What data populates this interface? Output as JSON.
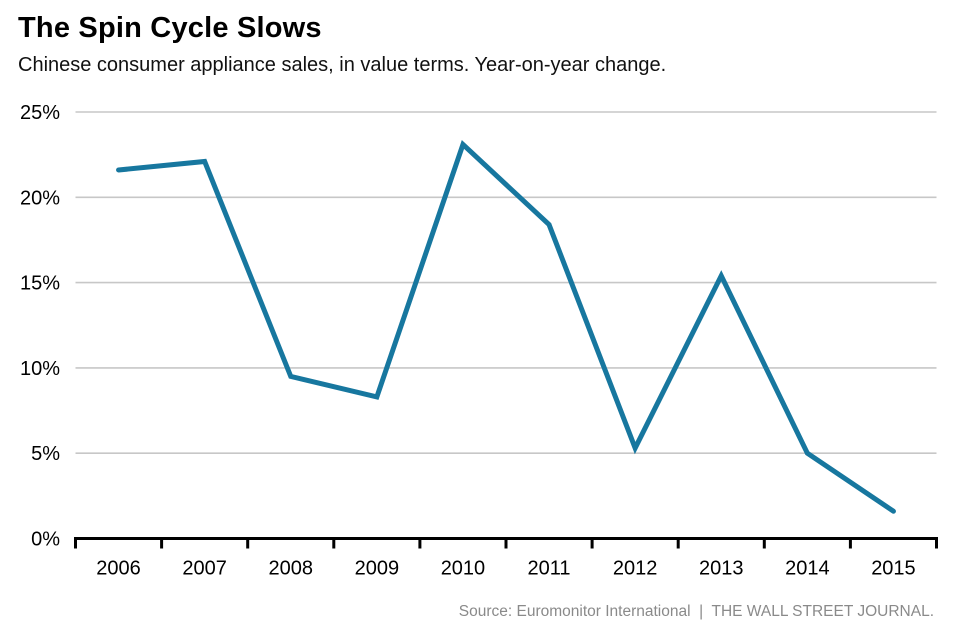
{
  "header": {
    "title": "The Spin Cycle Slows",
    "subtitle": "Chinese consumer appliance sales, in value terms. Year-on-year change."
  },
  "chart_data": {
    "type": "line",
    "title": "The Spin Cycle Slows",
    "subtitle": "Chinese consumer appliance sales, in value terms. Year-on-year change.",
    "categories": [
      "2006",
      "2007",
      "2008",
      "2009",
      "2010",
      "2011",
      "2012",
      "2013",
      "2014",
      "2015"
    ],
    "values": [
      21.6,
      22.1,
      9.5,
      8.3,
      23.1,
      18.4,
      5.3,
      15.4,
      5.0,
      1.6
    ],
    "xlabel": "",
    "ylabel": "",
    "ylim": [
      0,
      25
    ],
    "yticks": [
      0,
      5,
      10,
      15,
      20,
      25
    ],
    "ytick_labels": [
      "0%",
      "5%",
      "10%",
      "15%",
      "20%",
      "25%"
    ],
    "grid": "horizontal",
    "legend": "none",
    "colors": {
      "line": "#17779f",
      "grid": "#c7c7c7",
      "axis": "#000000",
      "tick_text": "#000000"
    }
  },
  "footer": {
    "source": "Source: Euromonitor International  |  THE WALL STREET JOURNAL."
  }
}
